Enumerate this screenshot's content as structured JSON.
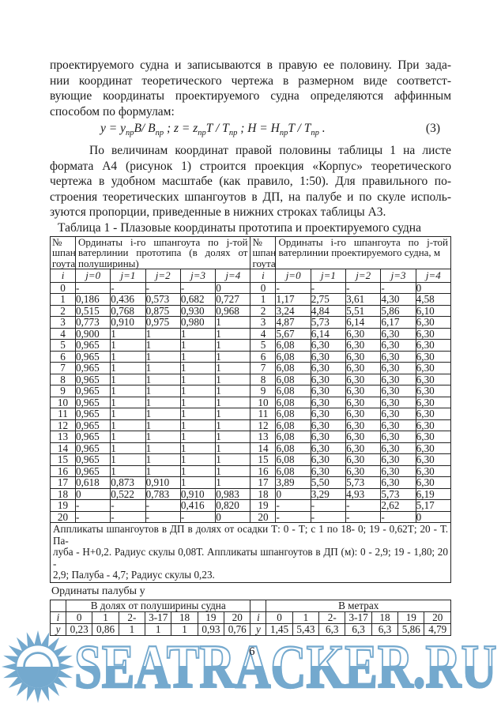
{
  "document": {
    "page_number": "6",
    "p1_lines": [
      "проектируемого судна и записываются в правую ее половину. При зада-",
      "нии координат теоретического чертежа в размерном виде соответст-",
      "вующие координаты проектируемого судна определяются аффинным",
      "способом по формулам:"
    ],
    "formula": {
      "segments": [
        {
          "t": "y = y",
          "sub": "пр"
        },
        {
          "t": "B/ B",
          "sub": "пр"
        },
        {
          "t": " ; z = z",
          "sub": "пр"
        },
        {
          "t": "T / T",
          "sub": "пр"
        },
        {
          "t": " ; H = H",
          "sub": "пр"
        },
        {
          "t": "T / T",
          "sub": "пр"
        },
        {
          "t": " ."
        }
      ],
      "number": "(3)"
    },
    "p2_lines": [
      "По величинам координат правой половины таблицы 1 на листе",
      "формата А4 (рисунок 1) строится проекция «Корпус» теоретического",
      "чертежа в удобном масштабе (как правило, 1:50). Для правильного по-",
      "строения теоретических шпангоутов в ДП, на палубе и по скуле исполь-",
      "зуются пропорции, приведенные в нижних строках таблицы А3."
    ],
    "table1": {
      "caption": "Таблица 1 - Плазовые координаты прототипа и проектируемого судна",
      "no_header": "№\nшпан\nгоута",
      "left_title": "Ординаты i-го шпангоута по j-той ватерлинии прототипа (в долях от полуширины)",
      "right_title": "Ординаты i-го шпангоута по j-той ватерлинии проектируемого судна, м",
      "sub_headers": [
        "i",
        "j=0",
        "j=1",
        "j=2",
        "j=3",
        "j=4",
        "i",
        "j=0",
        "j=1",
        "j=2",
        "j=3",
        "j=4"
      ],
      "rows": [
        [
          "0",
          "-",
          "-",
          "-",
          "-",
          "0",
          "0",
          "-",
          "-",
          "-",
          "-",
          "0"
        ],
        [
          "1",
          "0,186",
          "0,436",
          "0,573",
          "0,682",
          "0,727",
          "1",
          "1,17",
          "2,75",
          "3,61",
          "4,30",
          "4,58"
        ],
        [
          "2",
          "0,515",
          "0,768",
          "0,875",
          "0,930",
          "0,968",
          "2",
          "3,24",
          "4,84",
          "5,51",
          "5,86",
          "6,10"
        ],
        [
          "3",
          "0,773",
          "0,910",
          "0,975",
          "0,980",
          "1",
          "3",
          "4,87",
          "5,73",
          "6,14",
          "6,17",
          "6,30"
        ],
        [
          "4",
          "0,900",
          "1",
          "1",
          "1",
          "1",
          "4",
          "5,67",
          "6,14",
          "6,30",
          "6,30",
          "6,30"
        ],
        [
          "5",
          "0,965",
          "1",
          "1",
          "1",
          "1",
          "5",
          "6,08",
          "6,30",
          "6,30",
          "6,30",
          "6,30"
        ],
        [
          "6",
          "0,965",
          "1",
          "1",
          "1",
          "1",
          "6",
          "6,08",
          "6,30",
          "6,30",
          "6,30",
          "6,30"
        ],
        [
          "7",
          "0,965",
          "1",
          "1",
          "1",
          "1",
          "7",
          "6,08",
          "6,30",
          "6,30",
          "6,30",
          "6,30"
        ],
        [
          "8",
          "0,965",
          "1",
          "1",
          "1",
          "1",
          "8",
          "6,08",
          "6,30",
          "6,30",
          "6,30",
          "6,30"
        ],
        [
          "9",
          "0,965",
          "1",
          "1",
          "1",
          "1",
          "9",
          "6,08",
          "6,30",
          "6,30",
          "6,30",
          "6,30"
        ],
        [
          "10",
          "0,965",
          "1",
          "1",
          "1",
          "1",
          "10",
          "6,08",
          "6,30",
          "6,30",
          "6,30",
          "6,30"
        ],
        [
          "11",
          "0,965",
          "1",
          "1",
          "1",
          "1",
          "11",
          "6,08",
          "6,30",
          "6,30",
          "6,30",
          "6,30"
        ],
        [
          "12",
          "0,965",
          "1",
          "1",
          "1",
          "1",
          "12",
          "6,08",
          "6,30",
          "6,30",
          "6,30",
          "6,30"
        ],
        [
          "13",
          "0,965",
          "1",
          "1",
          "1",
          "1",
          "13",
          "6,08",
          "6,30",
          "6,30",
          "6,30",
          "6,30"
        ],
        [
          "14",
          "0,965",
          "1",
          "1",
          "1",
          "1",
          "14",
          "6,08",
          "6,30",
          "6,30",
          "6,30",
          "6,30"
        ],
        [
          "15",
          "0,965",
          "1",
          "1",
          "1",
          "1",
          "15",
          "6,08",
          "6,30",
          "6,30",
          "6,30",
          "6,30"
        ],
        [
          "16",
          "0,965",
          "1",
          "1",
          "1",
          "1",
          "16",
          "6,08",
          "6,30",
          "6,30",
          "6,30",
          "6,30"
        ],
        [
          "17",
          "0,618",
          "0,873",
          "0,910",
          "1",
          "1",
          "17",
          "3,89",
          "5,50",
          "5,73",
          "6,30",
          "6,30"
        ],
        [
          "18",
          "0",
          "0,522",
          "0,783",
          "0,910",
          "0,983",
          "18",
          "0",
          "3,29",
          "4,93",
          "5,73",
          "6,19"
        ],
        [
          "19",
          "-",
          "-",
          "-",
          "0,416",
          "0,820",
          "19",
          "-",
          "-",
          "-",
          "2,62",
          "5,17"
        ],
        [
          "20",
          "-",
          "-",
          "-",
          "-",
          "0",
          "20",
          "-",
          "-",
          "-",
          "-",
          "0"
        ]
      ],
      "note_lines": [
        "Аппликаты шпангоутов в ДП в долях от осадки Т: 0 - Т; с 1 по 18- 0; 19 - 0,62Т; 20 - Т. Па-",
        "луба - Н+0,2. Радиус скулы 0,08Т. Аппликаты шпангоутов в ДП (м): 0 - 2,9; 19 - 1,80; 20 -",
        "2,9; Палуба - 4,7; Радиус скулы 0,23."
      ]
    },
    "deck": {
      "caption": "Ординаты палубы у",
      "left_group": "В долях от полуширины судна",
      "right_group": "В метрах",
      "col_headers": [
        "i",
        "0",
        "1",
        "2-",
        "3-17",
        "18",
        "19",
        "20"
      ],
      "row_label": "у",
      "left_values": [
        "0,23",
        "0,86",
        "1",
        "1",
        "1",
        "0,93",
        "0,76"
      ],
      "right_values": [
        "1,45",
        "5,43",
        "6,3",
        "6,3",
        "6,3",
        "5,86",
        "4,79"
      ]
    }
  },
  "watermark": {
    "text": "SEATRACKER.RU",
    "color": "#74a9ce",
    "sun_icon": "sun-over-sea-logo"
  }
}
